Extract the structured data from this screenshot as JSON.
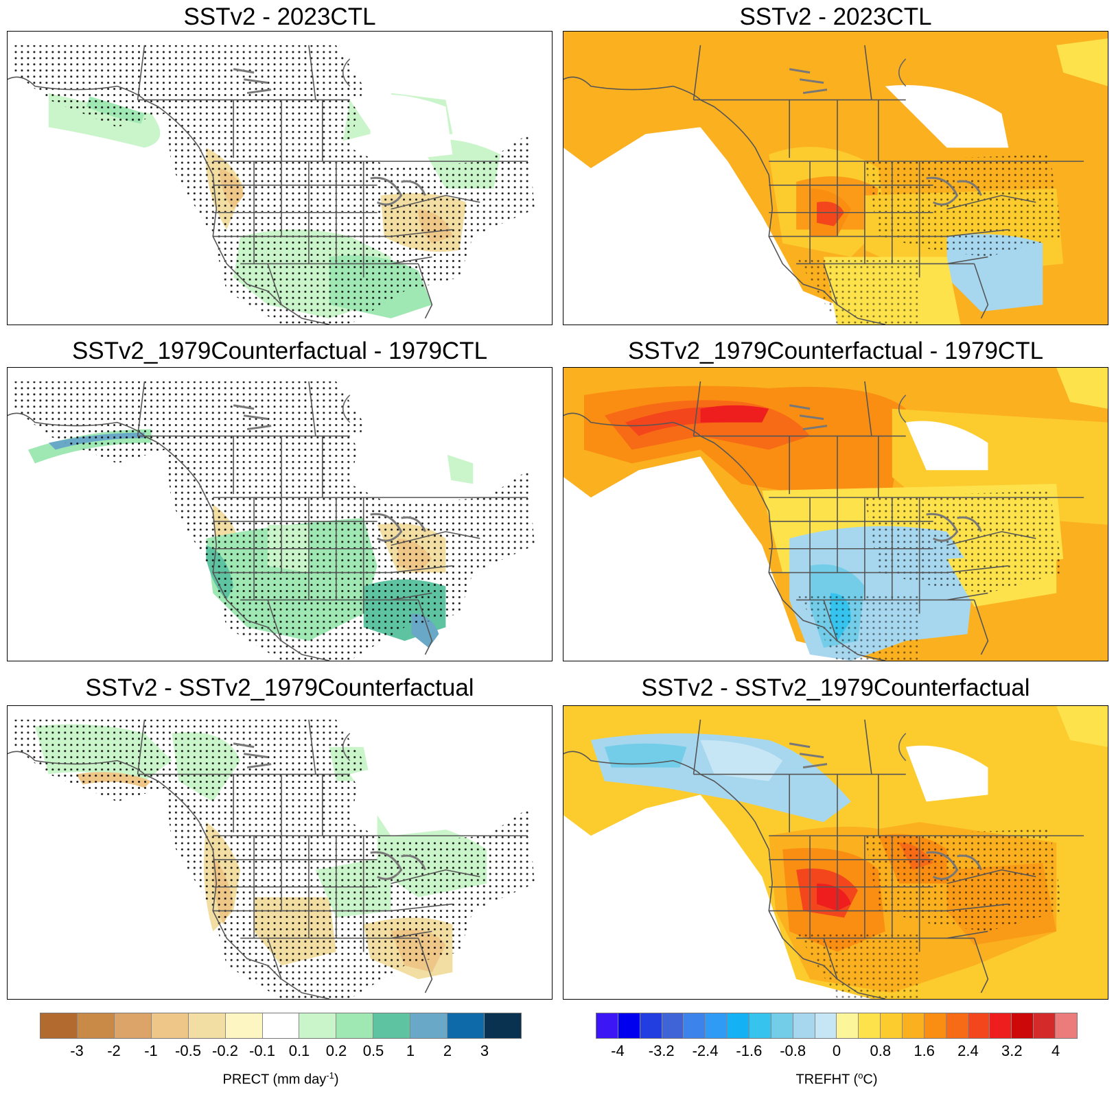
{
  "panels": [
    {
      "title": "SSTv2 - 2023CTL",
      "variable": "PRECT"
    },
    {
      "title": "SSTv2 - 2023CTL",
      "variable": "TREFHT"
    },
    {
      "title": "SSTv2_1979Counterfactual - 1979CTL",
      "variable": "PRECT"
    },
    {
      "title": "SSTv2_1979Counterfactual - 1979CTL",
      "variable": "TREFHT"
    },
    {
      "title": "SSTv2 - SSTv2_1979Counterfactual",
      "variable": "PRECT"
    },
    {
      "title": "SSTv2 - SSTv2_1979Counterfactual",
      "variable": "TREFHT"
    }
  ],
  "precip_colorbar": {
    "label_main": "PRECT (mm day",
    "label_sup": "-1",
    "label_end": ")",
    "ticks": [
      "-3",
      "-2",
      "-1",
      "-0.5",
      "-0.2",
      "-0.1",
      "0.1",
      "0.2",
      "0.5",
      "1",
      "2",
      "3"
    ],
    "colors": [
      "#b36a2e",
      "#c98a48",
      "#dca468",
      "#eec687",
      "#f2dea2",
      "#fdf5c2",
      "#ffffff",
      "#caf4c9",
      "#9fe8b4",
      "#5ec3a0",
      "#6aa8c8",
      "#0e6aa8",
      "#08324f"
    ]
  },
  "temp_colorbar": {
    "label_main": "TREFHT (",
    "label_sup": "o",
    "label_end": "C)",
    "ticks": [
      "-4",
      "-3.2",
      "-2.4",
      "-1.6",
      "-0.8",
      "0",
      "0.8",
      "1.6",
      "2.4",
      "3.2",
      "4"
    ],
    "colors": [
      "#3d16f5",
      "#0000ee",
      "#233ee0",
      "#3f64d8",
      "#3c84ec",
      "#2f9bf5",
      "#14b1f5",
      "#36c4ee",
      "#73cde8",
      "#a6d7ef",
      "#c7e6f5",
      "#fdf59a",
      "#fde24c",
      "#fccc2e",
      "#fbb020",
      "#fa8e12",
      "#f86b16",
      "#f4461d",
      "#ee1e1e",
      "#cc0808",
      "#d42a2a",
      "#ec7b7b"
    ]
  }
}
